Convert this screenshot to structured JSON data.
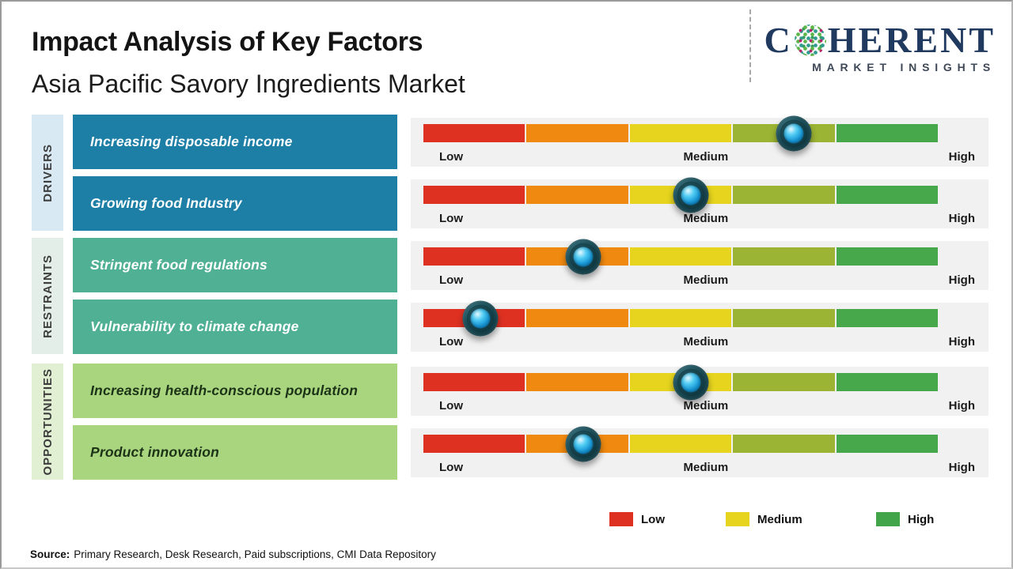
{
  "page": {
    "title": "Impact Analysis of Key Factors",
    "subtitle": "Asia Pacific Savory Ingredients Market"
  },
  "logo": {
    "prefix": "C",
    "suffix": "HERENT",
    "subline": "MARKET INSIGHTS"
  },
  "scale": {
    "low": "Low",
    "medium": "Medium",
    "high": "High"
  },
  "groups": [
    {
      "name": "DRIVERS",
      "label_bg": "#D8E9F4",
      "box_bg": "#1E7FA6",
      "box_text": "#FFFFFF",
      "rows": [
        {
          "label": "Increasing disposable income",
          "knob_left": "72%"
        },
        {
          "label": "Growing food Industry",
          "knob_left": "52%"
        }
      ]
    },
    {
      "name": "RESTRAINTS",
      "label_bg": "#E3EEE8",
      "box_bg": "#50B093",
      "box_text": "#FFFFFF",
      "rows": [
        {
          "label": "Stringent food regulations",
          "knob_left": "31%"
        },
        {
          "label": "Vulnerability to climate change",
          "knob_left": "11%"
        }
      ]
    },
    {
      "name": "OPPORTUNITIES",
      "label_bg": "#E1EFD2",
      "box_bg": "#A9D57E",
      "box_text": "#1C3318",
      "rows": [
        {
          "label": "Increasing health-conscious population",
          "knob_left": "52%"
        },
        {
          "label": "Product innovation",
          "knob_left": "31%"
        }
      ]
    }
  ],
  "segments": [
    "#DF3122",
    "#F0890F",
    "#E6D41E",
    "#9CB433",
    "#46A74B"
  ],
  "legend": [
    {
      "label": "Low",
      "color": "#DF3122"
    },
    {
      "label": "Medium",
      "color": "#E6D41E"
    },
    {
      "label": "High",
      "color": "#43A549"
    }
  ],
  "source": {
    "prefix": "Source:",
    "text": "Primary Research, Desk Research, Paid subscriptions, CMI Data Repository"
  },
  "chart_data": {
    "type": "bar",
    "variant": "impact-slider-rating",
    "title": "Impact Analysis of Key Factors",
    "subtitle": "Asia Pacific Savory Ingredients Market",
    "scale_ticks": [
      "Low",
      "Medium",
      "High"
    ],
    "xlim_pct": [
      0,
      100
    ],
    "categories": [
      "Increasing disposable income",
      "Growing food Industry",
      "Stringent food regulations",
      "Vulnerability to climate change",
      "Increasing health-conscious population",
      "Product innovation"
    ],
    "groups": [
      "Drivers",
      "Drivers",
      "Restraints",
      "Restraints",
      "Opportunities",
      "Opportunities"
    ],
    "values_pct": [
      72,
      52,
      31,
      11,
      52,
      31
    ],
    "impact_levels": [
      "Medium-High",
      "Medium",
      "Low-Medium",
      "Low",
      "Medium",
      "Low-Medium"
    ],
    "segment_colors": [
      "#DF3122",
      "#F0890F",
      "#E6D41E",
      "#9CB433",
      "#46A74B"
    ],
    "legend": [
      "Low",
      "Medium",
      "High"
    ],
    "legend_position": "bottom-right",
    "source": "Primary Research, Desk Research, Paid subscriptions, CMI Data Repository"
  }
}
